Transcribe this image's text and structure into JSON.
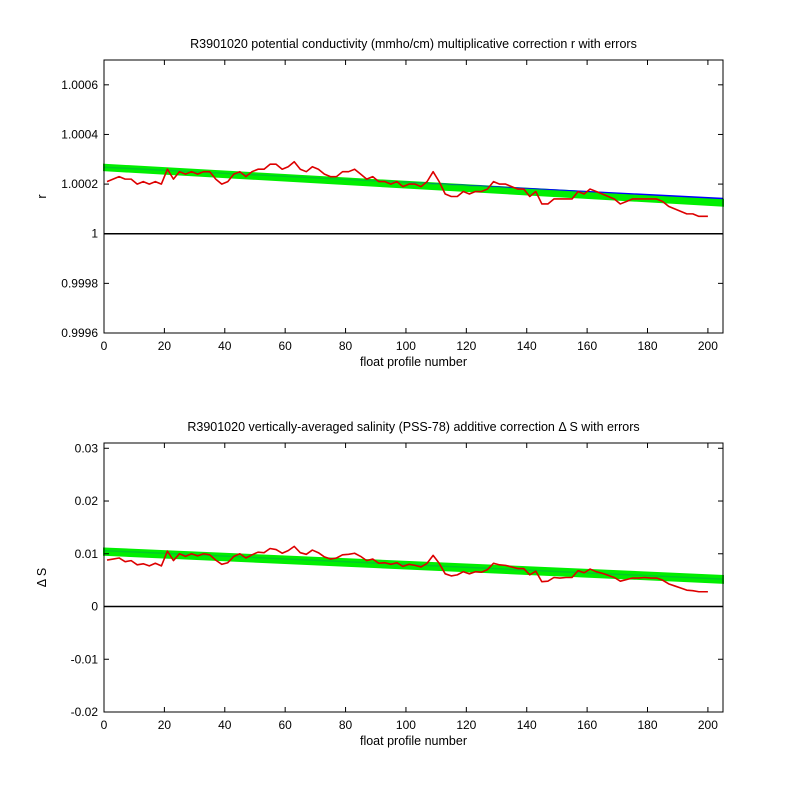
{
  "chart_data": [
    {
      "type": "line",
      "title": "R3901020 potential conductivity (mmho/cm) multiplicative correction r with errors",
      "xlabel": "float profile number",
      "ylabel": "r",
      "xlim": [
        0,
        205
      ],
      "ylim": [
        0.9996,
        1.0007
      ],
      "xticks": [
        0,
        20,
        40,
        60,
        80,
        100,
        120,
        140,
        160,
        180,
        200
      ],
      "yticks": [
        0.9996,
        0.9998,
        1,
        1.0002,
        1.0004,
        1.0006
      ],
      "ytick_labels": [
        "0.9996",
        "0.9998",
        "1",
        "1.0002",
        "1.0004",
        "1.0006"
      ],
      "reference_line": 1,
      "grid": false,
      "colors": {
        "error_band": "#00ee00",
        "fit": "#0000ff",
        "series": "#dd0000",
        "reference": "#000000"
      },
      "fit": {
        "x": [
          0,
          205
        ],
        "y": [
          1.000268,
          1.000142
        ]
      },
      "error_band": {
        "x": [
          0,
          205
        ],
        "upper": [
          1.000278,
          1.000137
        ],
        "lower": [
          1.000256,
          1.000113
        ]
      },
      "series": [
        {
          "x": [
            1,
            3,
            5,
            7,
            9,
            11,
            13,
            15,
            17,
            19,
            21,
            23,
            25,
            27,
            29,
            31,
            33,
            35,
            37,
            39,
            41,
            43,
            45,
            47,
            49,
            51,
            53,
            55,
            57,
            59,
            61,
            63,
            65,
            67,
            69,
            71,
            73,
            75,
            77,
            79,
            81,
            83,
            85,
            87,
            89,
            91,
            93,
            95,
            97,
            99,
            101,
            103,
            105,
            107,
            109,
            111,
            113,
            115,
            117,
            119,
            121,
            123,
            125,
            127,
            129,
            131,
            133,
            135,
            137,
            139,
            141,
            143,
            145,
            147,
            149,
            151,
            153,
            155,
            157,
            159,
            161,
            163,
            165,
            167,
            169,
            171,
            173,
            175,
            177,
            179,
            181,
            183,
            185,
            187,
            189,
            191,
            193,
            195,
            197,
            200
          ],
          "y": [
            1.00021,
            1.00022,
            1.00023,
            1.00022,
            1.00022,
            1.0002,
            1.00021,
            1.0002,
            1.00021,
            1.0002,
            1.00026,
            1.00022,
            1.00025,
            1.00024,
            1.00025,
            1.00024,
            1.00025,
            1.00025,
            1.00022,
            1.0002,
            1.00021,
            1.00024,
            1.00025,
            1.00023,
            1.00025,
            1.00026,
            1.00026,
            1.00028,
            1.00028,
            1.00026,
            1.00027,
            1.00029,
            1.00026,
            1.00025,
            1.00027,
            1.00026,
            1.00024,
            1.00023,
            1.00023,
            1.00025,
            1.00025,
            1.00026,
            1.00024,
            1.00022,
            1.00023,
            1.00021,
            1.00021,
            1.0002,
            1.00021,
            1.00019,
            1.0002,
            1.0002,
            1.00019,
            1.00021,
            1.00025,
            1.00021,
            1.00016,
            1.00015,
            1.00015,
            1.00017,
            1.00016,
            1.00017,
            1.00017,
            1.00018,
            1.00021,
            1.0002,
            1.0002,
            1.00019,
            1.00018,
            1.00018,
            1.00015,
            1.00017,
            1.00012,
            1.00012,
            1.00014,
            1.00014,
            1.00014,
            1.00014,
            1.00017,
            1.00016,
            1.00018,
            1.00017,
            1.00016,
            1.00015,
            1.00014,
            1.00012,
            1.00013,
            1.00014,
            1.00014,
            1.00014,
            1.00014,
            1.00014,
            1.00013,
            1.00011,
            1.0001,
            1.00009,
            1.00008,
            1.00008,
            1.00007,
            1.00007
          ]
        }
      ]
    },
    {
      "type": "line",
      "title": "R3901020 vertically-averaged salinity (PSS-78) additive correction Δ S with errors",
      "xlabel": "float profile number",
      "ylabel": "Δ S",
      "xlim": [
        0,
        205
      ],
      "ylim": [
        -0.02,
        0.031
      ],
      "xticks": [
        0,
        20,
        40,
        60,
        80,
        100,
        120,
        140,
        160,
        180,
        200
      ],
      "yticks": [
        -0.02,
        -0.01,
        0,
        0.01,
        0.02,
        0.03
      ],
      "ytick_labels": [
        "-0.02",
        "-0.01",
        "0",
        "0.01",
        "0.02",
        "0.03"
      ],
      "reference_line": 0,
      "grid": false,
      "colors": {
        "error_band": "#00ee00",
        "fit": "#0000ff",
        "series": "#dd0000",
        "reference": "#000000"
      },
      "fit": {
        "x": [
          0,
          205
        ],
        "y": [
          0.0106,
          0.0052
        ]
      },
      "error_band": {
        "x": [
          0,
          205
        ],
        "upper": [
          0.011,
          0.0058
        ],
        "lower": [
          0.0098,
          0.0045
        ]
      },
      "series": [
        {
          "x": [
            1,
            3,
            5,
            7,
            9,
            11,
            13,
            15,
            17,
            19,
            21,
            23,
            25,
            27,
            29,
            31,
            33,
            35,
            37,
            39,
            41,
            43,
            45,
            47,
            49,
            51,
            53,
            55,
            57,
            59,
            61,
            63,
            65,
            67,
            69,
            71,
            73,
            75,
            77,
            79,
            81,
            83,
            85,
            87,
            89,
            91,
            93,
            95,
            97,
            99,
            101,
            103,
            105,
            107,
            109,
            111,
            113,
            115,
            117,
            119,
            121,
            123,
            125,
            127,
            129,
            131,
            133,
            135,
            137,
            139,
            141,
            143,
            145,
            147,
            149,
            151,
            153,
            155,
            157,
            159,
            161,
            163,
            165,
            167,
            169,
            171,
            173,
            175,
            177,
            179,
            181,
            183,
            185,
            187,
            189,
            191,
            193,
            195,
            197,
            200
          ],
          "y": [
            0.0088,
            0.009,
            0.0092,
            0.0085,
            0.0087,
            0.0079,
            0.0081,
            0.0077,
            0.0082,
            0.0077,
            0.0105,
            0.0087,
            0.01,
            0.0095,
            0.01,
            0.0096,
            0.01,
            0.0098,
            0.0088,
            0.008,
            0.0083,
            0.0095,
            0.01,
            0.0092,
            0.0098,
            0.0103,
            0.0102,
            0.011,
            0.0108,
            0.0101,
            0.0106,
            0.0114,
            0.0102,
            0.0099,
            0.0107,
            0.0102,
            0.0094,
            0.009,
            0.0092,
            0.0098,
            0.0099,
            0.0101,
            0.0095,
            0.0087,
            0.009,
            0.0082,
            0.0083,
            0.008,
            0.0083,
            0.0076,
            0.008,
            0.0078,
            0.0075,
            0.0082,
            0.0097,
            0.0082,
            0.0062,
            0.0058,
            0.006,
            0.0066,
            0.0062,
            0.0066,
            0.0065,
            0.007,
            0.0082,
            0.0079,
            0.0078,
            0.0075,
            0.0072,
            0.0072,
            0.006,
            0.0067,
            0.0047,
            0.0048,
            0.0055,
            0.0054,
            0.0055,
            0.0055,
            0.0068,
            0.0064,
            0.0071,
            0.0066,
            0.0063,
            0.0059,
            0.0055,
            0.0048,
            0.0051,
            0.0054,
            0.0054,
            0.0055,
            0.0054,
            0.0054,
            0.005,
            0.0043,
            0.0039,
            0.0035,
            0.0031,
            0.003,
            0.0028,
            0.0028
          ]
        }
      ]
    }
  ]
}
